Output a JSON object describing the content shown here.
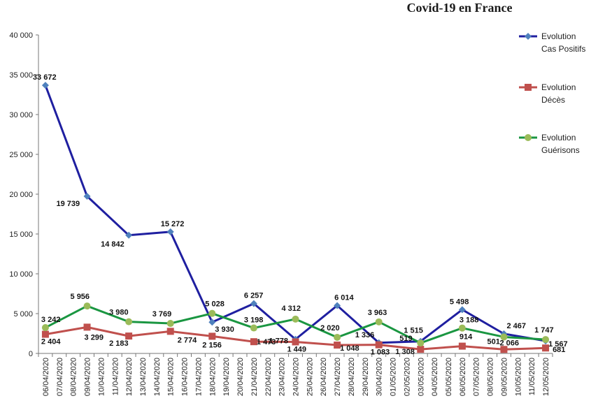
{
  "chart_data": {
    "type": "line",
    "title": "Covid-19 en France",
    "xlabel": "",
    "ylabel": "",
    "ylim": [
      0,
      40000
    ],
    "yticks": [
      0,
      5000,
      10000,
      15000,
      20000,
      25000,
      30000,
      35000,
      40000
    ],
    "ytick_labels": [
      "0",
      "5 000",
      "10 000",
      "15 000",
      "20 000",
      "25 000",
      "30 000",
      "35 000",
      "40 000"
    ],
    "grid": false,
    "legend_position": "right",
    "categories": [
      "06/04/2020",
      "07/04/2020",
      "08/04/2020",
      "09/04/2020",
      "10/04/2020",
      "11/04/2020",
      "12/04/2020",
      "13/04/2020",
      "14/04/2020",
      "15/04/2020",
      "16/04/2020",
      "17/04/2020",
      "18/04/2020",
      "19/04/2020",
      "20/04/2020",
      "21/04/2020",
      "22/04/2020",
      "23/04/2020",
      "24/04/2020",
      "25/04/2020",
      "26/04/2020",
      "27/04/2020",
      "28/04/2020",
      "29/04/2020",
      "30/04/2020",
      "01/05/2020",
      "02/05/2020",
      "03/05/2020",
      "04/05/2020",
      "05/05/2020",
      "06/05/2020",
      "07/05/2020",
      "08/05/2020",
      "09/05/2020",
      "10/05/2020",
      "11/05/2020",
      "12/05/2020"
    ],
    "series": [
      {
        "name": "Evolution Cas Positifs",
        "legend_lines": [
          "Evolution",
          "Cas Positifs"
        ],
        "color": "#1f1fa0",
        "marker": "diamond",
        "marker_color": "#4f81bd",
        "points": [
          {
            "x": "06/04/2020",
            "y": 33672,
            "label": "33 672"
          },
          {
            "x": "09/04/2020",
            "y": 19739,
            "label": "19 739"
          },
          {
            "x": "12/04/2020",
            "y": 14842,
            "label": "14 842"
          },
          {
            "x": "15/04/2020",
            "y": 15272,
            "label": "15 272"
          },
          {
            "x": "18/04/2020",
            "y": 3930,
            "label": "3 930"
          },
          {
            "x": "21/04/2020",
            "y": 6257,
            "label": "6 257"
          },
          {
            "x": "24/04/2020",
            "y": 1778,
            "label": "1 778"
          },
          {
            "x": "27/04/2020",
            "y": 6014,
            "label": "6 014"
          },
          {
            "x": "30/04/2020",
            "y": 1336,
            "label": "1 336"
          },
          {
            "x": "03/05/2020",
            "y": 1515,
            "label": "1 515"
          },
          {
            "x": "06/05/2020",
            "y": 5498,
            "label": "5 498"
          },
          {
            "x": "09/05/2020",
            "y": 2467,
            "label": "2 467"
          },
          {
            "x": "12/05/2020",
            "y": 1567,
            "label": "1 567"
          }
        ]
      },
      {
        "name": "Evolution Décès",
        "legend_lines": [
          "Evolution",
          "Décès"
        ],
        "color": "#c0504d",
        "marker": "square",
        "marker_color": "#c0504d",
        "points": [
          {
            "x": "06/04/2020",
            "y": 2404,
            "label": "2 404"
          },
          {
            "x": "09/04/2020",
            "y": 3299,
            "label": "3 299"
          },
          {
            "x": "12/04/2020",
            "y": 2183,
            "label": "2 183"
          },
          {
            "x": "15/04/2020",
            "y": 2774,
            "label": "2 774"
          },
          {
            "x": "18/04/2020",
            "y": 2156,
            "label": "2 156"
          },
          {
            "x": "21/04/2020",
            "y": 1473,
            "label": "1 473"
          },
          {
            "x": "24/04/2020",
            "y": 1449,
            "label": "1 449"
          },
          {
            "x": "27/04/2020",
            "y": 1048,
            "label": "1 048"
          },
          {
            "x": "30/04/2020",
            "y": 1083,
            "label": "1 083"
          },
          {
            "x": "03/05/2020",
            "y": 519,
            "label": "519"
          },
          {
            "x": "06/05/2020",
            "y": 914,
            "label": "914"
          },
          {
            "x": "09/05/2020",
            "y": 501,
            "label": "501"
          },
          {
            "x": "12/05/2020",
            "y": 681,
            "label": "681"
          }
        ]
      },
      {
        "name": "Evolution Guérisons",
        "legend_lines": [
          "Evolution",
          "Guérisons"
        ],
        "color": "#1a9641",
        "marker": "circle",
        "marker_color": "#9bbb59",
        "points": [
          {
            "x": "06/04/2020",
            "y": 3242,
            "label": "3 242"
          },
          {
            "x": "09/04/2020",
            "y": 5956,
            "label": "5 956"
          },
          {
            "x": "12/04/2020",
            "y": 3980,
            "label": "3 980"
          },
          {
            "x": "15/04/2020",
            "y": 3769,
            "label": "3 769"
          },
          {
            "x": "18/04/2020",
            "y": 5028,
            "label": "5 028"
          },
          {
            "x": "21/04/2020",
            "y": 3198,
            "label": "3 198"
          },
          {
            "x": "24/04/2020",
            "y": 4312,
            "label": "4 312"
          },
          {
            "x": "27/04/2020",
            "y": 2020,
            "label": "2 020"
          },
          {
            "x": "30/04/2020",
            "y": 3963,
            "label": "3 963"
          },
          {
            "x": "03/05/2020",
            "y": 1308,
            "label": "1 308"
          },
          {
            "x": "06/05/2020",
            "y": 3188,
            "label": "3 188"
          },
          {
            "x": "09/05/2020",
            "y": 2066,
            "label": "2 066"
          },
          {
            "x": "12/05/2020",
            "y": 1747,
            "label": "1 747"
          }
        ]
      }
    ]
  }
}
